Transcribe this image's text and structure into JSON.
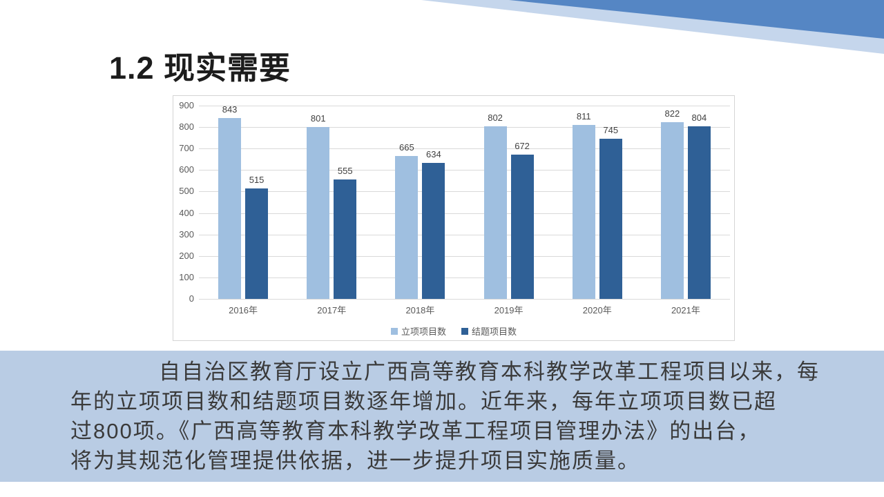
{
  "slide": {
    "title": "1.2 现实需要",
    "paragraph_lines": [
      "自自治区教育厅设立广西高等教育本科教学改革工程项目以来，每",
      "年的立项项目数和结题项目数逐年增加。近年来，每年立项项目数已超",
      "过800项。《广西高等教育本科教学改革工程项目管理办法》的出台，",
      "将为其规范化管理提供依据，进一步提升项目实施质量。"
    ]
  },
  "colors": {
    "series1": "#9fbfe0",
    "series2": "#2f6096",
    "grid": "#d9d9d9",
    "chart_border": "#d4d4d4",
    "axis_text": "#595959",
    "value_text": "#404040",
    "panel_bg": "#b9cce4",
    "band_light": "#c5d6ec",
    "band_dark": "#5586c4",
    "title_text": "#1c1c1c"
  },
  "chart_data": {
    "type": "bar",
    "categories": [
      "2016年",
      "2017年",
      "2018年",
      "2019年",
      "2020年",
      "2021年"
    ],
    "series": [
      {
        "name": "立项项目数",
        "values": [
          843,
          801,
          665,
          802,
          811,
          822
        ]
      },
      {
        "name": "结题项目数",
        "values": [
          515,
          555,
          634,
          672,
          745,
          804
        ]
      }
    ],
    "title": "",
    "xlabel": "",
    "ylabel": "",
    "ylim": [
      0,
      900
    ],
    "ytick_interval": 100,
    "grid": true,
    "value_labels": true,
    "legend_position": "bottom"
  }
}
